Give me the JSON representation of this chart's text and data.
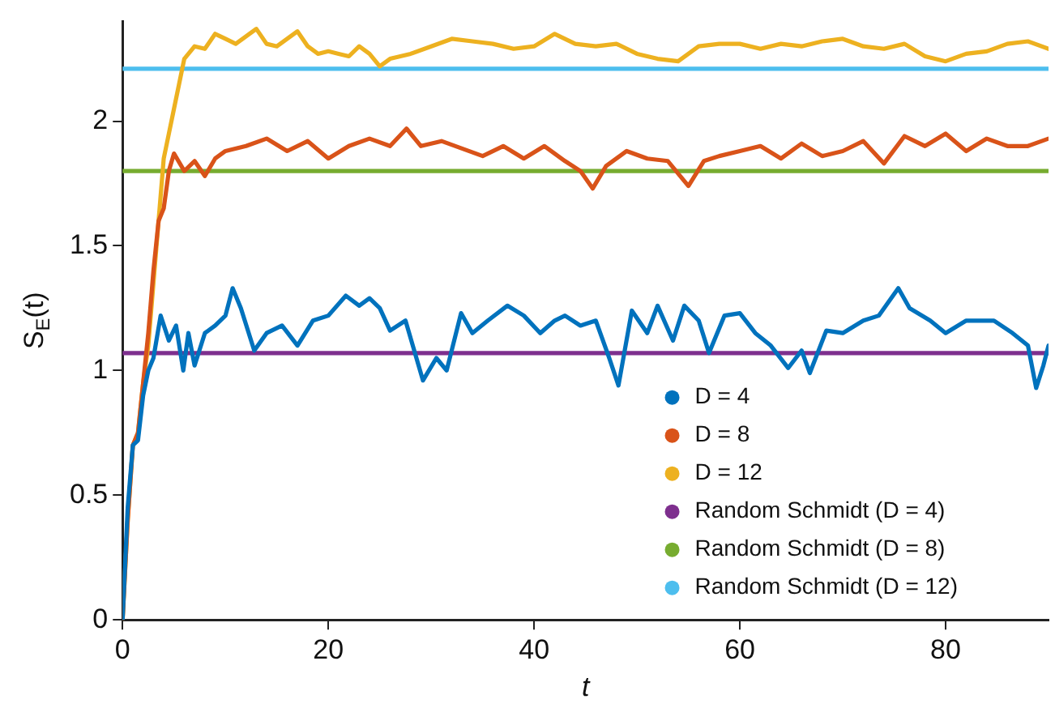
{
  "chart_data": {
    "type": "line",
    "xlabel": "t",
    "ylabel": "S$_{E}$(t)",
    "xlim": [
      0,
      90
    ],
    "xticks": [
      0,
      20,
      40,
      60,
      80
    ],
    "ylim": [
      0,
      2.4
    ],
    "yticks": [
      0,
      0.5,
      1,
      1.5,
      2
    ],
    "grid": false,
    "legend": "bottom right",
    "marker": "none",
    "line_style": "solid",
    "series": [
      {
        "name": "D = 4",
        "color": "#0072bd",
        "x": [
          0,
          0.5,
          1,
          1.5,
          2,
          2.5,
          3,
          3.7,
          4.5,
          5.2,
          5.9,
          6.4,
          7,
          8,
          9,
          10,
          10.7,
          11.5,
          12.8,
          14,
          15.5,
          17,
          18.5,
          20,
          21.7,
          23,
          24,
          25,
          26,
          27.5,
          29.2,
          30.5,
          31.5,
          32.9,
          34,
          35.5,
          37.4,
          39,
          40.6,
          42,
          43,
          44.5,
          46,
          47.3,
          48.2,
          49.5,
          51,
          52,
          53.5,
          54.6,
          56,
          57,
          58.5,
          60,
          61.5,
          63,
          64.7,
          66,
          66.8,
          68.4,
          70,
          72,
          73.5,
          75.4,
          76.5,
          78.5,
          80,
          82,
          84.7,
          86.5,
          88,
          88.8,
          89.5,
          90
        ],
        "values": [
          0,
          0.45,
          0.7,
          0.72,
          0.9,
          1.0,
          1.05,
          1.22,
          1.12,
          1.18,
          1.0,
          1.15,
          1.02,
          1.15,
          1.18,
          1.22,
          1.33,
          1.25,
          1.08,
          1.15,
          1.18,
          1.1,
          1.2,
          1.22,
          1.3,
          1.26,
          1.29,
          1.25,
          1.16,
          1.2,
          0.96,
          1.05,
          1.0,
          1.23,
          1.15,
          1.2,
          1.26,
          1.22,
          1.15,
          1.2,
          1.22,
          1.18,
          1.2,
          1.05,
          0.94,
          1.24,
          1.15,
          1.26,
          1.12,
          1.26,
          1.2,
          1.07,
          1.22,
          1.23,
          1.15,
          1.1,
          1.01,
          1.08,
          0.99,
          1.16,
          1.15,
          1.2,
          1.22,
          1.33,
          1.25,
          1.2,
          1.15,
          1.2,
          1.2,
          1.15,
          1.1,
          0.93,
          1.02,
          1.1
        ]
      },
      {
        "name": "D = 8",
        "color": "#d95319",
        "x": [
          0,
          0.5,
          1,
          1.5,
          2,
          2.5,
          3,
          3.5,
          4,
          4.5,
          5,
          6,
          7,
          8,
          9,
          10,
          12,
          14,
          16,
          18,
          20,
          22,
          24,
          26,
          27.6,
          29,
          31,
          33,
          35,
          37,
          39,
          41,
          43,
          44.5,
          45.7,
          47,
          49,
          51,
          53,
          55,
          56.5,
          58,
          60,
          62,
          64,
          66,
          68,
          70,
          72,
          74,
          76,
          78,
          80,
          82,
          84,
          86,
          88,
          90
        ],
        "values": [
          0,
          0.4,
          0.7,
          0.75,
          0.95,
          1.15,
          1.4,
          1.6,
          1.65,
          1.8,
          1.87,
          1.8,
          1.84,
          1.78,
          1.85,
          1.88,
          1.9,
          1.93,
          1.88,
          1.92,
          1.85,
          1.9,
          1.93,
          1.9,
          1.97,
          1.9,
          1.92,
          1.89,
          1.86,
          1.9,
          1.85,
          1.9,
          1.84,
          1.8,
          1.73,
          1.82,
          1.88,
          1.85,
          1.84,
          1.74,
          1.84,
          1.86,
          1.88,
          1.9,
          1.85,
          1.91,
          1.86,
          1.88,
          1.92,
          1.83,
          1.94,
          1.9,
          1.95,
          1.88,
          1.93,
          1.9,
          1.9,
          1.93
        ]
      },
      {
        "name": "D = 12",
        "color": "#edb120",
        "x": [
          0,
          0.5,
          1,
          1.5,
          2,
          2.5,
          3,
          3.5,
          4,
          4.5,
          5,
          5.5,
          6,
          7,
          8,
          9,
          10,
          11,
          12,
          13,
          14,
          15,
          16,
          17,
          18,
          19,
          20,
          21,
          22,
          23,
          24,
          25,
          26,
          28,
          30,
          32,
          34,
          36,
          38,
          40,
          42,
          44,
          46,
          48,
          50,
          52,
          54,
          56,
          58,
          60,
          62,
          64,
          66,
          68,
          70,
          72,
          74,
          76,
          78,
          80,
          82,
          84,
          86,
          88,
          90
        ],
        "values": [
          0,
          0.4,
          0.7,
          0.75,
          0.95,
          1.1,
          1.35,
          1.6,
          1.85,
          1.95,
          2.05,
          2.15,
          2.25,
          2.3,
          2.29,
          2.35,
          2.33,
          2.31,
          2.34,
          2.37,
          2.31,
          2.3,
          2.33,
          2.36,
          2.3,
          2.27,
          2.28,
          2.27,
          2.26,
          2.3,
          2.27,
          2.22,
          2.25,
          2.27,
          2.3,
          2.33,
          2.32,
          2.31,
          2.29,
          2.3,
          2.35,
          2.31,
          2.3,
          2.31,
          2.27,
          2.25,
          2.24,
          2.3,
          2.31,
          2.31,
          2.29,
          2.31,
          2.3,
          2.32,
          2.33,
          2.3,
          2.29,
          2.31,
          2.26,
          2.24,
          2.27,
          2.28,
          2.31,
          2.32,
          2.29
        ]
      },
      {
        "name": "Random Schmidt (D = 4)",
        "color": "#7e2f8e",
        "x": [
          0,
          90
        ],
        "values": [
          1.07,
          1.07
        ]
      },
      {
        "name": "Random Schmidt (D = 8)",
        "color": "#77ac30",
        "x": [
          0,
          90
        ],
        "values": [
          1.8,
          1.8
        ]
      },
      {
        "name": "Random Schmidt (D = 12)",
        "color": "#4dbeee",
        "x": [
          0,
          90
        ],
        "values": [
          2.21,
          2.21
        ]
      }
    ]
  }
}
